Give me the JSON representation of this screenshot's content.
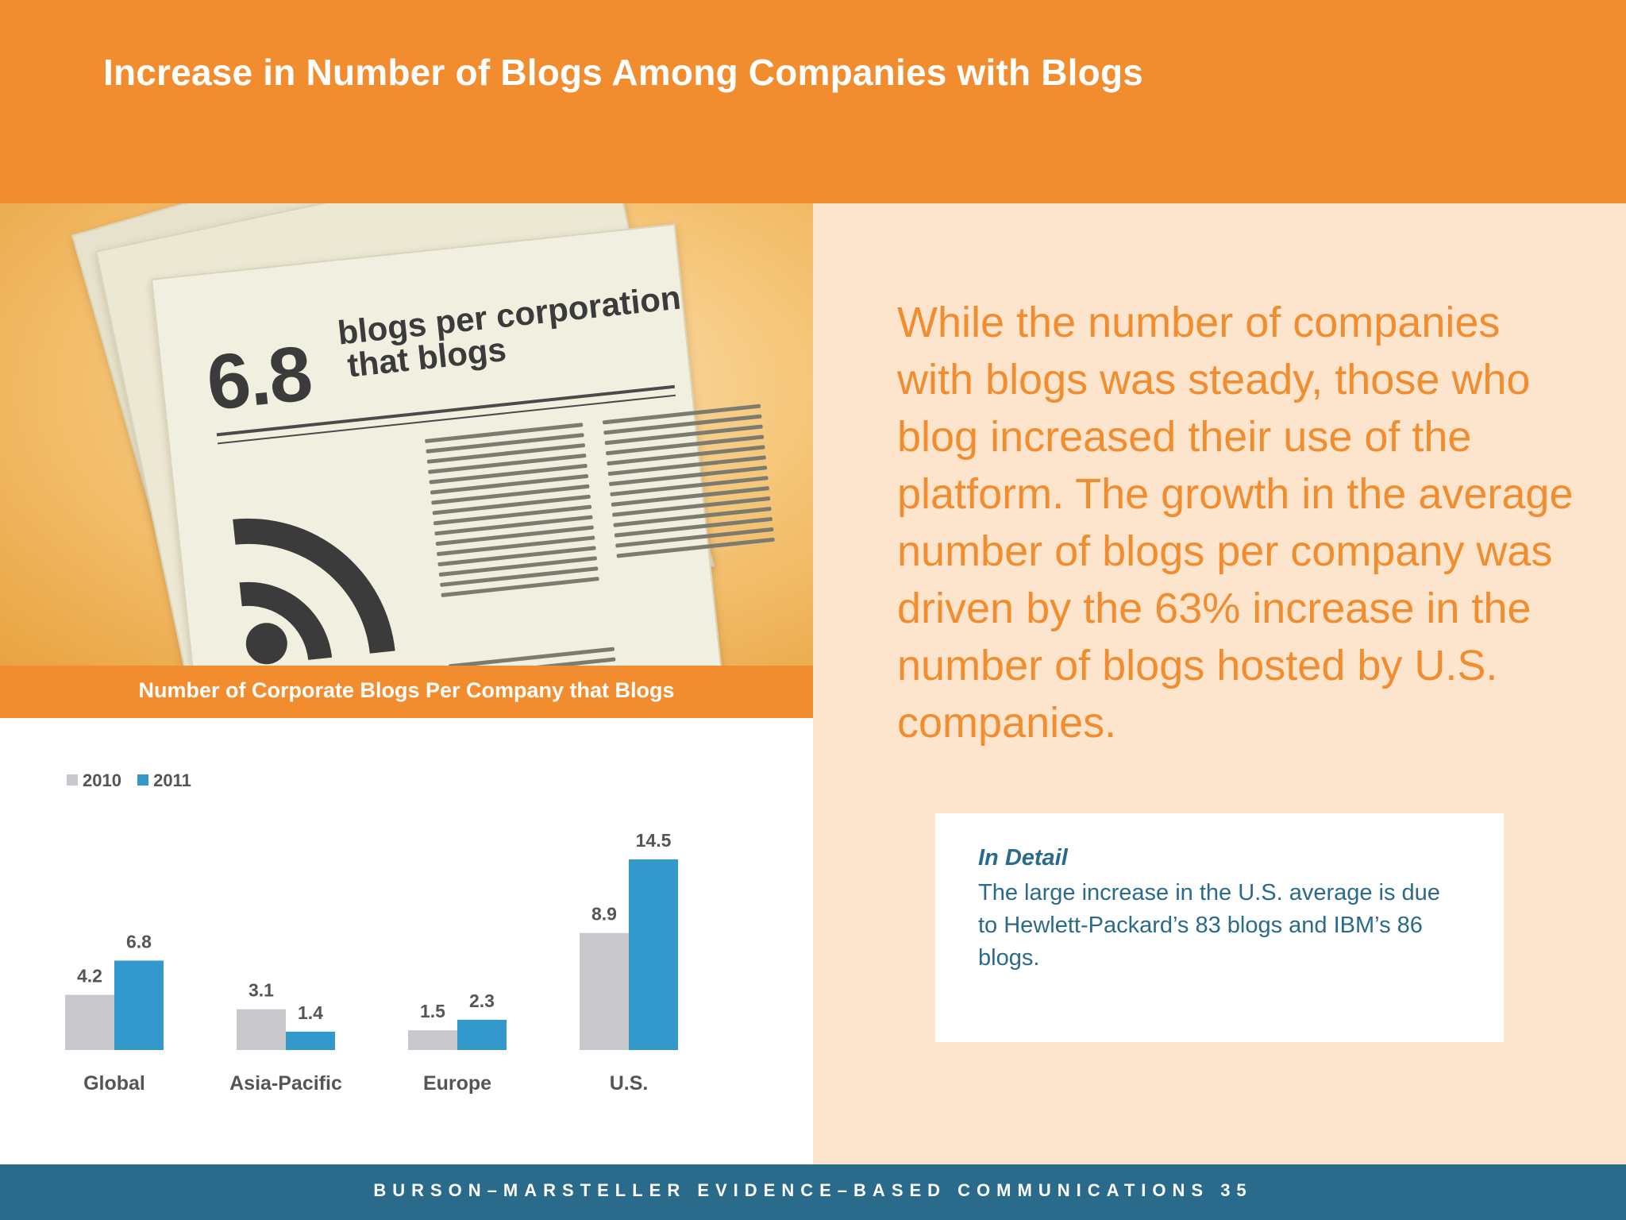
{
  "header": {
    "title": "Increase in Number of Blogs Among Companies with Blogs"
  },
  "illustration": {
    "big_number": "6.8",
    "headline_line1": "blogs per corporation",
    "headline_line2": "that blogs",
    "icon": "rss-icon"
  },
  "chart_caption": "Number of Corporate Blogs Per Company that Blogs",
  "chart_data": {
    "type": "bar",
    "categories": [
      "Global",
      "Asia-Pacific",
      "Europe",
      "U.S."
    ],
    "series": [
      {
        "name": "2010",
        "values": [
          4.2,
          3.1,
          1.5,
          8.9
        ],
        "color": "#C9C8CD"
      },
      {
        "name": "2011",
        "values": [
          6.8,
          1.4,
          2.3,
          14.5
        ],
        "color": "#3399CC"
      }
    ],
    "title": "Number of Corporate Blogs Per Company that Blogs",
    "xlabel": "",
    "ylabel": "",
    "ylim": [
      0,
      14.5
    ],
    "grid": false,
    "legend": "top-left"
  },
  "body_text": "While the number of companies with blogs was steady, those who blog increased their use of the platform. The growth in the average number of blogs per company was driven by the 63% increase in the number of blogs hosted by U.S. companies.",
  "detail": {
    "title": "In Detail",
    "text": "The large increase in the U.S. average is due to Hewlett-Packard’s 83 blogs and IBM’s 86 blogs."
  },
  "footer": {
    "text": "BURSON–MARSTELLER EVIDENCE–BASED COMMUNICATIONS 35"
  },
  "colors": {
    "orange": "#F28D2F",
    "peach": "#FDE5CD",
    "teal": "#2A6A8A",
    "gray_bar": "#C9C8CD",
    "blue_bar": "#3399CC"
  }
}
